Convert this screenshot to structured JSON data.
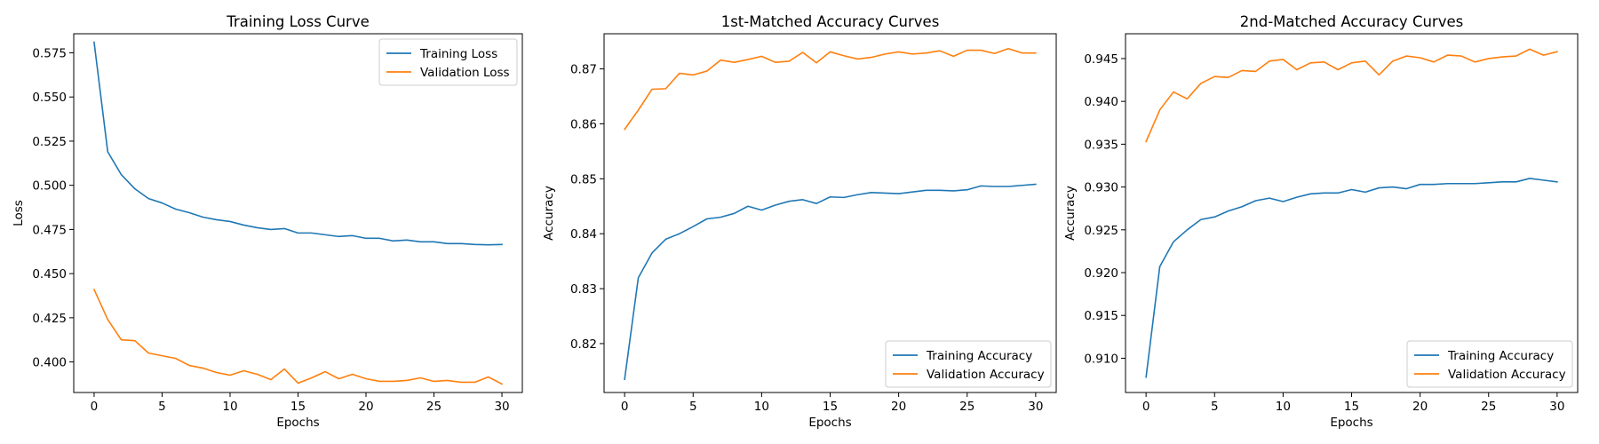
{
  "chart_data": [
    {
      "type": "line",
      "title": "Training Loss Curve",
      "xlabel": "Epochs",
      "ylabel": "Loss",
      "xlim": [
        -1.5,
        31.5
      ],
      "ylim": [
        0.3827,
        0.5858
      ],
      "xticks": [
        0,
        5,
        10,
        15,
        20,
        25,
        30
      ],
      "yticks": [
        0.4,
        0.425,
        0.45,
        0.475,
        0.5,
        0.525,
        0.55,
        0.575
      ],
      "ytick_labels": [
        "0.400",
        "0.425",
        "0.450",
        "0.475",
        "0.500",
        "0.525",
        "0.550",
        "0.575"
      ],
      "legend": "top-right",
      "grid": false,
      "x": [
        0,
        1,
        2,
        3,
        4,
        5,
        6,
        7,
        8,
        9,
        10,
        11,
        12,
        13,
        14,
        15,
        16,
        17,
        18,
        19,
        20,
        21,
        22,
        23,
        24,
        25,
        26,
        27,
        28,
        29,
        30
      ],
      "series": [
        {
          "name": "Training Loss",
          "color": "#1f77b4",
          "values": [
            0.581,
            0.519,
            0.506,
            0.498,
            0.4925,
            0.49,
            0.4865,
            0.4845,
            0.482,
            0.4805,
            0.4795,
            0.4775,
            0.476,
            0.475,
            0.4755,
            0.473,
            0.473,
            0.472,
            0.471,
            0.4715,
            0.47,
            0.47,
            0.4685,
            0.469,
            0.468,
            0.468,
            0.467,
            0.467,
            0.4665,
            0.4663,
            0.4665
          ]
        },
        {
          "name": "Validation Loss",
          "color": "#ff7f0e",
          "values": [
            0.441,
            0.424,
            0.4125,
            0.412,
            0.405,
            0.4035,
            0.402,
            0.398,
            0.3965,
            0.394,
            0.3925,
            0.395,
            0.393,
            0.39,
            0.396,
            0.388,
            0.391,
            0.3945,
            0.3905,
            0.393,
            0.3905,
            0.389,
            0.389,
            0.3895,
            0.391,
            0.389,
            0.3895,
            0.3885,
            0.3885,
            0.3915,
            0.3875
          ]
        }
      ]
    },
    {
      "type": "line",
      "title": "1st-Matched Accuracy Curves",
      "xlabel": "Epochs",
      "ylabel": "Accuracy",
      "xlim": [
        -1.5,
        31.5
      ],
      "ylim": [
        0.8111,
        0.8764
      ],
      "xticks": [
        0,
        5,
        10,
        15,
        20,
        25,
        30
      ],
      "yticks": [
        0.82,
        0.83,
        0.84,
        0.85,
        0.86,
        0.87
      ],
      "ytick_labels": [
        "0.82",
        "0.83",
        "0.84",
        "0.85",
        "0.86",
        "0.87"
      ],
      "legend": "bottom-right",
      "grid": false,
      "x": [
        0,
        1,
        2,
        3,
        4,
        5,
        6,
        7,
        8,
        9,
        10,
        11,
        12,
        13,
        14,
        15,
        16,
        17,
        18,
        19,
        20,
        21,
        22,
        23,
        24,
        25,
        26,
        27,
        28,
        29,
        30
      ],
      "series": [
        {
          "name": "Training Accuracy",
          "color": "#1f77b4",
          "values": [
            0.8135,
            0.832,
            0.8365,
            0.839,
            0.84,
            0.8413,
            0.8427,
            0.843,
            0.8437,
            0.845,
            0.8443,
            0.8452,
            0.8459,
            0.8462,
            0.8455,
            0.8467,
            0.8466,
            0.8471,
            0.8475,
            0.8474,
            0.8473,
            0.8476,
            0.8479,
            0.8479,
            0.8478,
            0.848,
            0.8487,
            0.8486,
            0.8486,
            0.8488,
            0.849
          ]
        },
        {
          "name": "Validation Accuracy",
          "color": "#ff7f0e",
          "values": [
            0.859,
            0.8625,
            0.8663,
            0.8664,
            0.8692,
            0.8689,
            0.8696,
            0.8716,
            0.8712,
            0.8717,
            0.8723,
            0.8712,
            0.8714,
            0.873,
            0.8711,
            0.8731,
            0.8724,
            0.8718,
            0.8721,
            0.8727,
            0.8731,
            0.8727,
            0.8729,
            0.8733,
            0.8723,
            0.8734,
            0.8734,
            0.8728,
            0.8737,
            0.8729,
            0.8729
          ]
        }
      ]
    },
    {
      "type": "line",
      "title": "2nd-Matched Accuracy Curves",
      "xlabel": "Epochs",
      "ylabel": "Accuracy",
      "xlim": [
        -1.5,
        31.5
      ],
      "ylim": [
        0.906,
        0.9479
      ],
      "xticks": [
        0,
        5,
        10,
        15,
        20,
        25,
        30
      ],
      "yticks": [
        0.91,
        0.915,
        0.92,
        0.925,
        0.93,
        0.935,
        0.94,
        0.945
      ],
      "ytick_labels": [
        "0.910",
        "0.915",
        "0.920",
        "0.925",
        "0.930",
        "0.935",
        "0.940",
        "0.945"
      ],
      "legend": "bottom-right",
      "grid": false,
      "x": [
        0,
        1,
        2,
        3,
        4,
        5,
        6,
        7,
        8,
        9,
        10,
        11,
        12,
        13,
        14,
        15,
        16,
        17,
        18,
        19,
        20,
        21,
        22,
        23,
        24,
        25,
        26,
        27,
        28,
        29,
        30
      ],
      "series": [
        {
          "name": "Training Accuracy",
          "color": "#1f77b4",
          "values": [
            0.9078,
            0.9207,
            0.9236,
            0.925,
            0.9262,
            0.9265,
            0.9272,
            0.9277,
            0.9284,
            0.9287,
            0.9283,
            0.9288,
            0.9292,
            0.9293,
            0.9293,
            0.9297,
            0.9294,
            0.9299,
            0.93,
            0.9298,
            0.9303,
            0.9303,
            0.9304,
            0.9304,
            0.9304,
            0.9305,
            0.9306,
            0.9306,
            0.931,
            0.9308,
            0.9306
          ]
        },
        {
          "name": "Validation Accuracy",
          "color": "#ff7f0e",
          "values": [
            0.9353,
            0.939,
            0.9411,
            0.9403,
            0.9421,
            0.9429,
            0.9428,
            0.9436,
            0.9435,
            0.9447,
            0.9449,
            0.9437,
            0.9445,
            0.9446,
            0.9437,
            0.9445,
            0.9447,
            0.9431,
            0.9447,
            0.9453,
            0.9451,
            0.9446,
            0.9454,
            0.9453,
            0.9446,
            0.945,
            0.9452,
            0.9453,
            0.9461,
            0.9454,
            0.9458
          ]
        }
      ]
    }
  ]
}
